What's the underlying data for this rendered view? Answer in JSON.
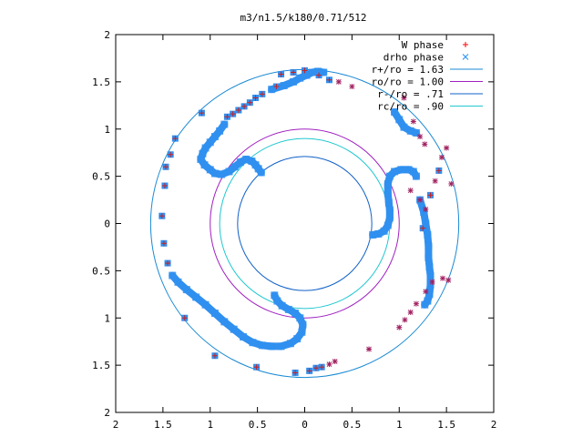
{
  "chart_data": {
    "type": "scatter",
    "title": "m3/n1.5/k180/0.71/512",
    "xlabel": "",
    "ylabel": "",
    "xlim": [
      -2,
      2
    ],
    "ylim": [
      -2,
      2
    ],
    "x_ticks": [
      {
        "value": -2,
        "label": "2"
      },
      {
        "value": -1.5,
        "label": "1.5"
      },
      {
        "value": -1,
        "label": "1"
      },
      {
        "value": -0.5,
        "label": "0.5"
      },
      {
        "value": 0,
        "label": "0"
      },
      {
        "value": 0.5,
        "label": "0.5"
      },
      {
        "value": 1,
        "label": "1"
      },
      {
        "value": 1.5,
        "label": "1.5"
      },
      {
        "value": 2,
        "label": "2"
      }
    ],
    "y_ticks": [
      {
        "value": 2,
        "label": "2"
      },
      {
        "value": 1.5,
        "label": "1.5"
      },
      {
        "value": 1,
        "label": "1"
      },
      {
        "value": 0.5,
        "label": "0.5"
      },
      {
        "value": 0,
        "label": "0"
      },
      {
        "value": -0.5,
        "label": "0.5"
      },
      {
        "value": -1,
        "label": "1"
      },
      {
        "value": -1.5,
        "label": "1.5"
      },
      {
        "value": -2,
        "label": "2"
      }
    ],
    "grid": false,
    "legend_position": "top-right",
    "legend": [
      {
        "label": "W phase",
        "kind": "plus",
        "color": "#ff0000"
      },
      {
        "label": "drho phase",
        "kind": "cross",
        "color": "#1e90ff"
      },
      {
        "label": "r+/ro = 1.63",
        "kind": "line",
        "color": "#1a8ad4",
        "radius": 1.63
      },
      {
        "label": "ro/ro = 1.00",
        "kind": "line",
        "color": "#a020c0",
        "radius": 1.0
      },
      {
        "label": "r-/ro = .71",
        "kind": "line",
        "color": "#1060c8",
        "radius": 0.71
      },
      {
        "label": "rc/ro = .90",
        "kind": "line",
        "color": "#20c8d0",
        "radius": 0.9
      }
    ],
    "series": [
      {
        "name": "W phase",
        "marker": "plus",
        "color": "#cc2020",
        "points": [
          [
            -0.25,
            1.58
          ],
          [
            -0.12,
            1.6
          ],
          [
            0.0,
            1.62
          ],
          [
            0.15,
            1.57
          ],
          [
            0.26,
            1.52
          ],
          [
            0.36,
            1.5
          ],
          [
            0.5,
            1.45
          ],
          [
            -0.3,
            1.45
          ],
          [
            -0.45,
            1.37
          ],
          [
            -0.52,
            1.33
          ],
          [
            -0.58,
            1.28
          ],
          [
            -0.64,
            1.24
          ],
          [
            -0.7,
            1.2
          ],
          [
            -0.76,
            1.16
          ],
          [
            -0.82,
            1.13
          ],
          [
            -1.09,
            1.17
          ],
          [
            -1.37,
            0.9
          ],
          [
            -1.42,
            0.73
          ],
          [
            -1.47,
            0.6
          ],
          [
            -1.48,
            0.4
          ],
          [
            -1.51,
            0.08
          ],
          [
            -1.49,
            -0.21
          ],
          [
            -1.45,
            -0.42
          ],
          [
            -1.27,
            -1.0
          ],
          [
            -0.95,
            -1.4
          ],
          [
            -0.51,
            -1.52
          ],
          [
            -0.1,
            -1.58
          ],
          [
            0.05,
            -1.56
          ],
          [
            0.12,
            -1.53
          ],
          [
            0.18,
            -1.52
          ],
          [
            0.26,
            -1.49
          ],
          [
            0.32,
            -1.46
          ],
          [
            0.68,
            -1.33
          ],
          [
            1.0,
            -1.1
          ],
          [
            1.06,
            -1.02
          ],
          [
            1.12,
            -0.94
          ],
          [
            1.18,
            -0.85
          ],
          [
            1.28,
            -0.72
          ],
          [
            1.35,
            -0.62
          ],
          [
            1.46,
            -0.58
          ],
          [
            1.52,
            -0.6
          ],
          [
            1.25,
            -0.05
          ],
          [
            1.28,
            0.15
          ],
          [
            1.33,
            0.3
          ],
          [
            1.38,
            0.45
          ],
          [
            1.42,
            0.56
          ],
          [
            1.45,
            0.7
          ],
          [
            1.5,
            0.8
          ],
          [
            1.55,
            0.42
          ],
          [
            1.05,
            1.33
          ],
          [
            1.15,
            1.08
          ],
          [
            1.22,
            0.92
          ],
          [
            1.27,
            0.84
          ],
          [
            1.12,
            0.35
          ],
          [
            1.22,
            0.25
          ]
        ]
      },
      {
        "name": "drho phase",
        "marker": "cross",
        "color": "#3090f0",
        "points": [
          [
            -0.25,
            1.58
          ],
          [
            -0.12,
            1.6
          ],
          [
            0.0,
            1.62
          ],
          [
            0.15,
            1.57
          ],
          [
            0.26,
            1.52
          ],
          [
            -0.3,
            1.45
          ],
          [
            -0.45,
            1.37
          ],
          [
            -0.52,
            1.33
          ],
          [
            -0.58,
            1.28
          ],
          [
            -0.64,
            1.24
          ],
          [
            -0.7,
            1.2
          ],
          [
            -0.76,
            1.16
          ],
          [
            -0.82,
            1.13
          ],
          [
            -1.09,
            1.17
          ],
          [
            -1.37,
            0.9
          ],
          [
            -1.42,
            0.73
          ],
          [
            -1.47,
            0.6
          ],
          [
            -1.48,
            0.4
          ],
          [
            -1.51,
            0.08
          ],
          [
            -1.49,
            -0.21
          ],
          [
            -1.45,
            -0.42
          ],
          [
            -1.27,
            -1.0
          ],
          [
            -0.95,
            -1.4
          ],
          [
            -0.51,
            -1.52
          ],
          [
            -0.1,
            -1.58
          ],
          [
            0.05,
            -1.56
          ],
          [
            0.12,
            -1.53
          ],
          [
            0.18,
            -1.52
          ],
          [
            1.25,
            -0.05
          ],
          [
            1.33,
            0.3
          ],
          [
            1.42,
            0.56
          ]
        ]
      }
    ],
    "dense_curves": [
      {
        "name": "drho phase",
        "color": "#3090f0",
        "points": [
          [
            -0.35,
            1.42
          ],
          [
            -0.22,
            1.46
          ],
          [
            -0.12,
            1.5
          ],
          [
            -0.05,
            1.54
          ],
          [
            0.02,
            1.57
          ],
          [
            0.08,
            1.6
          ],
          [
            0.14,
            1.61
          ],
          [
            0.2,
            1.6
          ],
          [
            -0.85,
            1.05
          ],
          [
            -0.9,
            0.98
          ],
          [
            -0.95,
            0.92
          ],
          [
            -1.0,
            0.86
          ],
          [
            -1.05,
            0.8
          ],
          [
            -1.08,
            0.74
          ],
          [
            -1.1,
            0.68
          ],
          [
            -1.06,
            0.62
          ],
          [
            -1.0,
            0.57
          ],
          [
            -0.95,
            0.53
          ],
          [
            -0.88,
            0.52
          ],
          [
            -0.8,
            0.55
          ],
          [
            -0.74,
            0.6
          ],
          [
            -0.68,
            0.65
          ],
          [
            -0.62,
            0.68
          ],
          [
            -0.56,
            0.66
          ],
          [
            -0.52,
            0.62
          ],
          [
            -0.49,
            0.58
          ],
          [
            -0.46,
            0.54
          ],
          [
            -1.4,
            -0.55
          ],
          [
            -1.34,
            -0.62
          ],
          [
            -1.25,
            -0.7
          ],
          [
            -1.15,
            -0.78
          ],
          [
            -1.05,
            -0.86
          ],
          [
            -0.95,
            -0.95
          ],
          [
            -0.85,
            -1.04
          ],
          [
            -0.75,
            -1.12
          ],
          [
            -0.65,
            -1.2
          ],
          [
            -0.55,
            -1.26
          ],
          [
            -0.45,
            -1.29
          ],
          [
            -0.35,
            -1.3
          ],
          [
            -0.25,
            -1.3
          ],
          [
            -0.15,
            -1.27
          ],
          [
            -0.08,
            -1.22
          ],
          [
            -0.03,
            -1.15
          ],
          [
            -0.02,
            -1.07
          ],
          [
            -0.05,
            -1.0
          ],
          [
            -0.1,
            -0.95
          ],
          [
            -0.17,
            -0.91
          ],
          [
            -0.24,
            -0.87
          ],
          [
            -0.29,
            -0.82
          ],
          [
            -0.32,
            -0.76
          ],
          [
            0.72,
            -0.12
          ],
          [
            0.78,
            -0.11
          ],
          [
            0.84,
            -0.08
          ],
          [
            0.88,
            -0.02
          ],
          [
            0.9,
            0.06
          ],
          [
            0.9,
            0.14
          ],
          [
            0.89,
            0.22
          ],
          [
            0.88,
            0.32
          ],
          [
            0.88,
            0.42
          ],
          [
            0.9,
            0.5
          ],
          [
            0.95,
            0.55
          ],
          [
            1.02,
            0.57
          ],
          [
            1.1,
            0.57
          ],
          [
            1.15,
            0.55
          ],
          [
            1.18,
            0.5
          ],
          [
            1.22,
            0.25
          ],
          [
            1.26,
            0.12
          ],
          [
            1.28,
            0.0
          ],
          [
            1.3,
            -0.12
          ],
          [
            1.31,
            -0.24
          ],
          [
            1.31,
            -0.36
          ],
          [
            1.32,
            -0.46
          ],
          [
            1.33,
            -0.55
          ],
          [
            1.33,
            -0.65
          ],
          [
            1.32,
            -0.75
          ],
          [
            1.3,
            -0.82
          ],
          [
            1.27,
            -0.86
          ],
          [
            0.95,
            1.18
          ],
          [
            1.0,
            1.1
          ],
          [
            1.05,
            1.02
          ],
          [
            1.12,
            0.98
          ],
          [
            1.18,
            0.96
          ]
        ]
      }
    ]
  }
}
